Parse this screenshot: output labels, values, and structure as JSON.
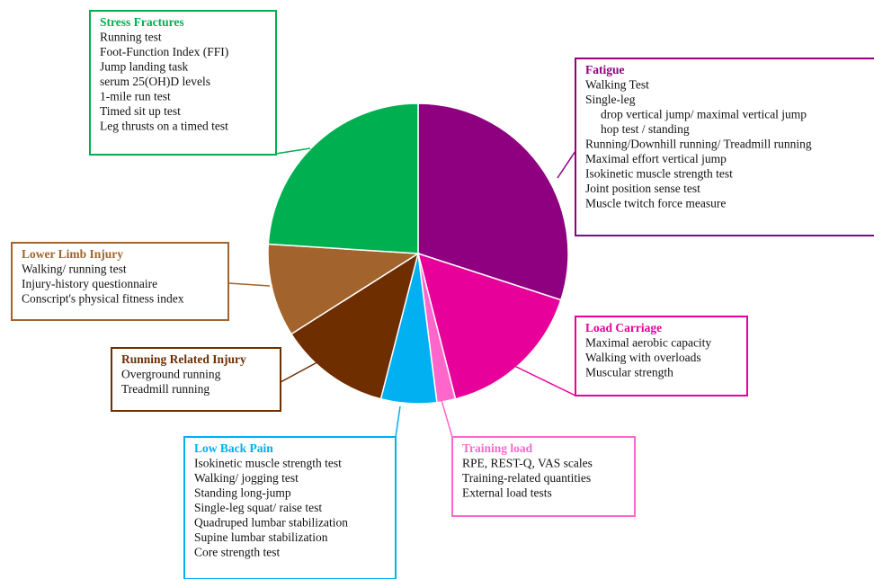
{
  "chart_data": {
    "type": "pie",
    "categories": [
      "Fatigue",
      "Load Carriage",
      "Training load",
      "Low Back Pain",
      "Running Related Injury",
      "Lower Limb Injury",
      "Stress Fractures"
    ],
    "values": [
      30,
      16,
      2,
      6,
      12,
      10,
      24
    ],
    "colors": [
      "#8e0080",
      "#e8009a",
      "#ff66cc",
      "#00b0f0",
      "#6e2e00",
      "#a2632c",
      "#00b050"
    ],
    "annotations": [
      [
        {
          "text": "Walking Test"
        },
        {
          "text": "Single-leg",
          "sub": [
            "drop vertical jump/ maximal vertical jump",
            "hop test / standing"
          ]
        },
        {
          "text": "Running/Downhill running/ Treadmill running"
        },
        {
          "text": "Maximal effort vertical jump"
        },
        {
          "text": "Isokinetic muscle strength test"
        },
        {
          "text": "Joint position sense test"
        },
        {
          "text": "Muscle twitch force measure"
        }
      ],
      [
        {
          "text": "Maximal aerobic capacity"
        },
        {
          "text": "Walking with overloads"
        },
        {
          "text": "Muscular strength"
        }
      ],
      [
        {
          "text": "RPE, REST-Q, VAS scales"
        },
        {
          "text": "Training-related quantities"
        },
        {
          "text": "External load tests"
        }
      ],
      [
        {
          "text": "Isokinetic muscle strength test"
        },
        {
          "text": "Walking/ jogging test"
        },
        {
          "text": "Standing long-jump"
        },
        {
          "text": "Single-leg squat/ raise test"
        },
        {
          "text": "Quadruped lumbar stabilization"
        },
        {
          "text": "Supine lumbar stabilization"
        },
        {
          "text": "Core strength test"
        }
      ],
      [
        {
          "text": "Overground running"
        },
        {
          "text": "Treadmill running"
        }
      ],
      [
        {
          "text": "Walking/ running test"
        },
        {
          "text": "Injury-history questionnaire"
        },
        {
          "text": "Conscript's physical fitness index"
        }
      ],
      [
        {
          "text": "Running test"
        },
        {
          "text": "Foot-Function Index (FFI)"
        },
        {
          "text": "Jump landing task"
        },
        {
          "text": "serum 25(OH)D levels"
        },
        {
          "text": "1-mile run test"
        },
        {
          "text": "Timed sit up test"
        },
        {
          "text": "Leg thrusts on a timed test"
        }
      ]
    ]
  }
}
